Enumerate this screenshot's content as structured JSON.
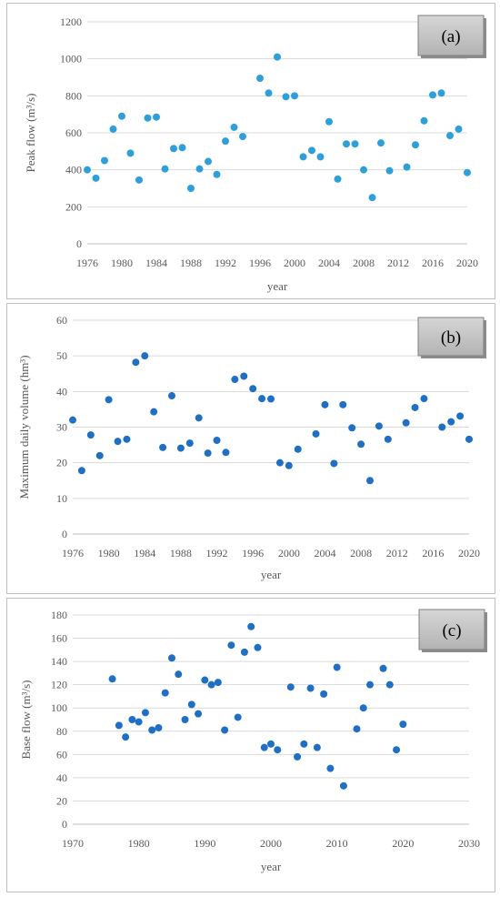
{
  "chart_data": [
    {
      "type": "scatter",
      "panel_tag": "(a)",
      "xlabel": "year",
      "ylabel": "Peak flow (m³/s)",
      "xlim": [
        1976,
        2020
      ],
      "ylim": [
        0,
        1200
      ],
      "xticks": [
        1976,
        1980,
        1984,
        1988,
        1992,
        1996,
        2000,
        2004,
        2008,
        2012,
        2016,
        2020
      ],
      "yticks": [
        0,
        200,
        400,
        600,
        800,
        1000,
        1200
      ],
      "grid": "horizontal",
      "color": "#2e9fd8",
      "series": [
        {
          "x": [
            1976,
            1977,
            1978,
            1979,
            1980,
            1981,
            1982,
            1983,
            1984,
            1985,
            1986,
            1987,
            1988,
            1989,
            1990,
            1991,
            1992,
            1993,
            1994,
            1996,
            1997,
            1998,
            1999,
            2000,
            2001,
            2002,
            2003,
            2004,
            2005,
            2006,
            2007,
            2008,
            2009,
            2010,
            2011,
            2013,
            2014,
            2015,
            2016,
            2017,
            2018,
            2019,
            2020
          ],
          "y": [
            400,
            355,
            450,
            620,
            690,
            490,
            345,
            680,
            685,
            405,
            515,
            520,
            300,
            405,
            445,
            375,
            555,
            630,
            580,
            895,
            815,
            1010,
            795,
            800,
            470,
            505,
            470,
            660,
            350,
            540,
            540,
            400,
            250,
            545,
            395,
            415,
            535,
            665,
            805,
            815,
            585,
            620,
            385
          ]
        }
      ]
    },
    {
      "type": "scatter",
      "panel_tag": "(b)",
      "xlabel": "year",
      "ylabel": "Maximum daily volume (hm³)",
      "xlim": [
        1976,
        2020
      ],
      "ylim": [
        0,
        60
      ],
      "xticks": [
        1976,
        1980,
        1984,
        1988,
        1992,
        1996,
        2000,
        2004,
        2008,
        2012,
        2016,
        2020
      ],
      "yticks": [
        0,
        10,
        20,
        30,
        40,
        50,
        60
      ],
      "grid": "horizontal",
      "color": "#1f6fc5",
      "series": [
        {
          "x": [
            1976,
            1977,
            1978,
            1979,
            1980,
            1981,
            1982,
            1983,
            1984,
            1985,
            1986,
            1987,
            1988,
            1989,
            1990,
            1991,
            1992,
            1993,
            1994,
            1995,
            1996,
            1997,
            1998,
            1999,
            2000,
            2001,
            2003,
            2004,
            2005,
            2006,
            2007,
            2008,
            2009,
            2010,
            2011,
            2013,
            2014,
            2015,
            2017,
            2018,
            2019,
            2020
          ],
          "y": [
            32,
            17.8,
            27.8,
            22,
            37.7,
            26,
            26.6,
            48.2,
            50,
            34.3,
            24.3,
            38.8,
            24.1,
            25.5,
            32.6,
            22.7,
            26.3,
            22.9,
            43.4,
            44.3,
            40.8,
            38,
            37.9,
            20,
            19.2,
            23.8,
            28.1,
            36.3,
            19.8,
            36.3,
            29.8,
            25.2,
            15,
            30.3,
            26.6,
            31.2,
            35.5,
            38,
            30,
            31.5,
            33.1,
            26.6
          ]
        }
      ]
    },
    {
      "type": "scatter",
      "panel_tag": "(c)",
      "xlabel": "year",
      "ylabel": "Base flow (m³/s)",
      "xlim": [
        1970,
        2030
      ],
      "ylim": [
        0,
        180
      ],
      "xticks": [
        1970,
        1980,
        1990,
        2000,
        2010,
        2020,
        2030
      ],
      "yticks": [
        0,
        20,
        40,
        60,
        80,
        100,
        120,
        140,
        160,
        180
      ],
      "grid": "horizontal",
      "color": "#1f6fc5",
      "series": [
        {
          "x": [
            1976,
            1977,
            1978,
            1979,
            1980,
            1981,
            1982,
            1983,
            1984,
            1985,
            1986,
            1987,
            1988,
            1989,
            1990,
            1991,
            1992,
            1993,
            1994,
            1995,
            1996,
            1997,
            1998,
            1999,
            2000,
            2001,
            2003,
            2004,
            2005,
            2006,
            2007,
            2008,
            2009,
            2010,
            2011,
            2013,
            2014,
            2015,
            2017,
            2018,
            2019,
            2020
          ],
          "y": [
            125,
            85,
            75,
            90,
            88,
            96,
            81,
            83,
            113,
            143,
            129,
            90,
            103,
            95,
            124,
            120,
            122,
            81,
            154,
            92,
            148,
            170,
            152,
            66,
            69,
            64,
            118,
            58,
            69,
            117,
            66,
            112,
            48,
            135,
            33,
            82,
            100,
            120,
            134,
            120,
            64,
            86
          ]
        }
      ]
    }
  ]
}
